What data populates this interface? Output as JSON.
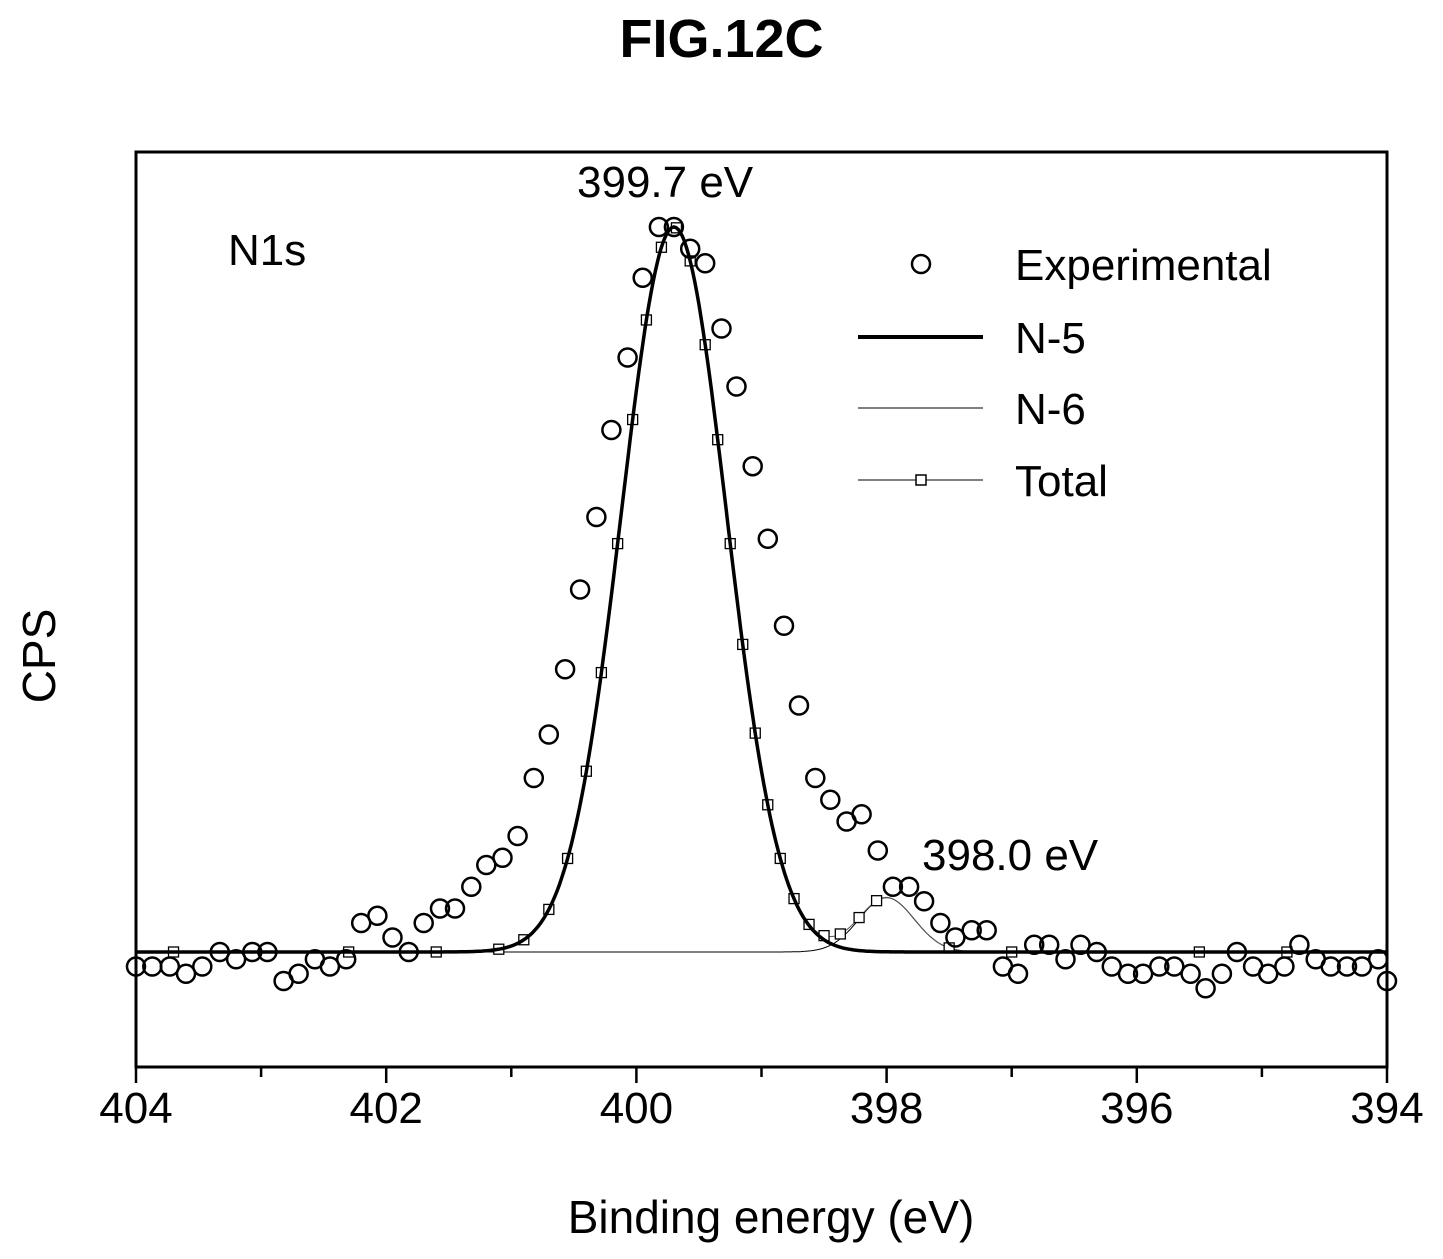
{
  "figure_label": "FIG.12C",
  "chart_data": {
    "type": "line",
    "xlabel": "Binding energy (eV)",
    "ylabel": "CPS",
    "xlim": [
      404,
      394
    ],
    "x_reversed": true,
    "ylim": [
      -0.16,
      1.08
    ],
    "y_ticks_shown": false,
    "x_ticks": [
      404,
      402,
      400,
      398,
      396,
      394
    ],
    "x_tick_labels": [
      "404",
      "402",
      "400",
      "398",
      "396",
      "394"
    ],
    "grid": false,
    "legend_position": "top-right",
    "annotations": [
      {
        "text": "N1s"
      },
      {
        "text": "399.7 eV",
        "x": 399.7
      },
      {
        "text": "398.0 eV",
        "x": 398.0
      }
    ],
    "series": [
      {
        "name": "Experimental",
        "kind": "scatter-circle",
        "x": [
          404.0,
          403.87,
          403.73,
          403.6,
          403.47,
          403.33,
          403.2,
          403.07,
          402.95,
          402.82,
          402.7,
          402.57,
          402.45,
          402.32,
          402.2,
          402.07,
          401.95,
          401.82,
          401.7,
          401.57,
          401.45,
          401.32,
          401.2,
          401.07,
          400.95,
          400.82,
          400.7,
          400.57,
          400.45,
          400.32,
          400.2,
          400.07,
          399.95,
          399.82,
          399.7,
          399.57,
          399.45,
          399.32,
          399.2,
          399.07,
          398.95,
          398.82,
          398.7,
          398.57,
          398.45,
          398.32,
          398.2,
          398.07,
          397.95,
          397.82,
          397.7,
          397.57,
          397.45,
          397.32,
          397.2,
          397.07,
          396.95,
          396.82,
          396.7,
          396.57,
          396.45,
          396.32,
          396.2,
          396.07,
          395.95,
          395.82,
          395.7,
          395.57,
          395.45,
          395.32,
          395.2,
          395.07,
          394.95,
          394.82,
          394.7,
          394.57,
          394.45,
          394.32,
          394.2,
          394.07,
          394.0
        ],
        "y": [
          -0.02,
          -0.02,
          -0.02,
          -0.03,
          -0.02,
          0.0,
          -0.01,
          0.0,
          0.0,
          -0.04,
          -0.03,
          -0.01,
          -0.02,
          -0.01,
          0.04,
          0.05,
          0.02,
          0.0,
          0.04,
          0.06,
          0.06,
          0.09,
          0.12,
          0.13,
          0.16,
          0.24,
          0.3,
          0.39,
          0.5,
          0.6,
          0.72,
          0.82,
          0.93,
          1.0,
          1.0,
          0.97,
          0.95,
          0.86,
          0.78,
          0.67,
          0.57,
          0.45,
          0.34,
          0.24,
          0.21,
          0.18,
          0.19,
          0.14,
          0.09,
          0.09,
          0.07,
          0.04,
          0.02,
          0.03,
          0.03,
          -0.02,
          -0.03,
          0.01,
          0.01,
          -0.01,
          0.01,
          0.0,
          -0.02,
          -0.03,
          -0.03,
          -0.02,
          -0.02,
          -0.03,
          -0.05,
          -0.03,
          0.0,
          -0.02,
          -0.03,
          -0.02,
          0.01,
          -0.01,
          -0.02,
          -0.02,
          -0.02,
          -0.01,
          -0.04
        ]
      },
      {
        "name": "N-5",
        "kind": "line-thick",
        "center": 399.7,
        "amplitude": 1.0,
        "sigma": 0.42
      },
      {
        "name": "N-6",
        "kind": "line-thin",
        "center": 398.0,
        "amplitude": 0.075,
        "sigma": 0.22
      },
      {
        "name": "Total",
        "kind": "line-thin-square",
        "marker_x": [
          403.7,
          402.3,
          401.6,
          401.1,
          400.9,
          400.7,
          400.55,
          400.4,
          400.28,
          400.15,
          400.03,
          399.92,
          399.8,
          399.68,
          399.57,
          399.45,
          399.35,
          399.25,
          399.15,
          399.05,
          398.95,
          398.85,
          398.74,
          398.62,
          398.5,
          398.37,
          398.22,
          398.08,
          397.5,
          397.0,
          395.5,
          394.8
        ]
      }
    ]
  },
  "colors": {
    "axis": "#000000",
    "text": "#000000",
    "background": "#ffffff"
  }
}
